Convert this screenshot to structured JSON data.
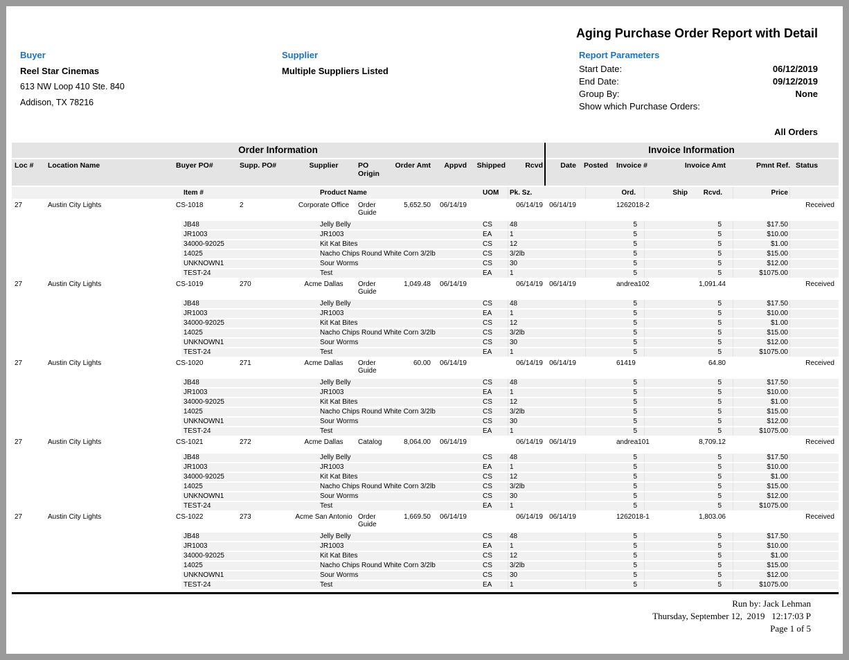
{
  "report": {
    "title": "Aging Purchase Order Report with Detail",
    "buyer": {
      "label": "Buyer",
      "name": "Reel Star Cinemas",
      "address1": "613 NW Loop 410 Ste. 840",
      "address2": "Addison, TX 78216"
    },
    "supplier": {
      "label": "Supplier",
      "value": "Multiple Suppliers Listed"
    },
    "parameters": {
      "label": "Report Parameters",
      "rows": [
        {
          "label": "Start Date:",
          "value": "06/12/2019"
        },
        {
          "label": "End Date:",
          "value": "09/12/2019"
        },
        {
          "label": "Group By:",
          "value": "None"
        },
        {
          "label": "Show which Purchase Orders:",
          "value": ""
        }
      ],
      "orders_filter": "All Orders"
    }
  },
  "table": {
    "groups": {
      "order": "Order Information",
      "invoice": "Invoice Information"
    },
    "order_columns": [
      "Loc #",
      "Location Name",
      "Buyer PO#",
      "Supp. PO#",
      "Supplier",
      "PO Origin",
      "Order Amt",
      "Appvd",
      "Shipped",
      "Rcvd",
      "Date",
      "Posted",
      "Invoice #",
      "Invoice Amt",
      "Pmnt Ref.",
      "Status"
    ],
    "item_columns": [
      "Item #",
      "Product Name",
      "UOM",
      "Pk. Sz.",
      "Ord.",
      "Ship",
      "Rcvd.",
      "Price"
    ],
    "orders": [
      {
        "loc": "27",
        "location_name": "Austin City Lights",
        "buyer_po": "CS-1018",
        "supp_po": "2",
        "supplier": "Corporate Office",
        "po_origin": "Order Guide",
        "order_amt": "5,652.50",
        "appvd": "06/14/19",
        "shipped": "",
        "rcvd": "06/14/19",
        "date": "06/14/19",
        "posted": "",
        "invoice_no": "1262018-2",
        "invoice_amt": "",
        "pmnt_ref": "",
        "status": "Received",
        "items": [
          {
            "item_no": "JB48",
            "product": "Jelly Belly",
            "uom": "CS",
            "pk_sz": "48",
            "ord": "5",
            "ship": "",
            "rcvd": "5",
            "price": "$17.50"
          },
          {
            "item_no": "JR1003",
            "product": "JR1003",
            "uom": "EA",
            "pk_sz": "1",
            "ord": "5",
            "ship": "",
            "rcvd": "5",
            "price": "$10.00"
          },
          {
            "item_no": "34000-92025",
            "product": "Kit Kat Bites",
            "uom": "CS",
            "pk_sz": "12",
            "ord": "5",
            "ship": "",
            "rcvd": "5",
            "price": "$1.00"
          },
          {
            "item_no": "14025",
            "product": "Nacho Chips Round White Corn 3/2lb",
            "uom": "CS",
            "pk_sz": "3/2lb",
            "ord": "5",
            "ship": "",
            "rcvd": "5",
            "price": "$15.00"
          },
          {
            "item_no": "UNKNOWN1",
            "product": "Sour Worms",
            "uom": "CS",
            "pk_sz": "30",
            "ord": "5",
            "ship": "",
            "rcvd": "5",
            "price": "$12.00"
          },
          {
            "item_no": "TEST-24",
            "product": "Test",
            "uom": "EA",
            "pk_sz": "1",
            "ord": "5",
            "ship": "",
            "rcvd": "5",
            "price": "$1075.00"
          }
        ]
      },
      {
        "loc": "27",
        "location_name": "Austin City Lights",
        "buyer_po": "CS-1019",
        "supp_po": "270",
        "supplier": "Acme Dallas",
        "po_origin": "Order Guide",
        "order_amt": "1,049.48",
        "appvd": "06/14/19",
        "shipped": "",
        "rcvd": "06/14/19",
        "date": "06/14/19",
        "posted": "",
        "invoice_no": "andrea102",
        "invoice_amt": "1,091.44",
        "pmnt_ref": "",
        "status": "Received",
        "items": [
          {
            "item_no": "JB48",
            "product": "Jelly Belly",
            "uom": "CS",
            "pk_sz": "48",
            "ord": "5",
            "ship": "",
            "rcvd": "5",
            "price": "$17.50"
          },
          {
            "item_no": "JR1003",
            "product": "JR1003",
            "uom": "EA",
            "pk_sz": "1",
            "ord": "5",
            "ship": "",
            "rcvd": "5",
            "price": "$10.00"
          },
          {
            "item_no": "34000-92025",
            "product": "Kit Kat Bites",
            "uom": "CS",
            "pk_sz": "12",
            "ord": "5",
            "ship": "",
            "rcvd": "5",
            "price": "$1.00"
          },
          {
            "item_no": "14025",
            "product": "Nacho Chips Round White Corn 3/2lb",
            "uom": "CS",
            "pk_sz": "3/2lb",
            "ord": "5",
            "ship": "",
            "rcvd": "5",
            "price": "$15.00"
          },
          {
            "item_no": "UNKNOWN1",
            "product": "Sour Worms",
            "uom": "CS",
            "pk_sz": "30",
            "ord": "5",
            "ship": "",
            "rcvd": "5",
            "price": "$12.00"
          },
          {
            "item_no": "TEST-24",
            "product": "Test",
            "uom": "EA",
            "pk_sz": "1",
            "ord": "5",
            "ship": "",
            "rcvd": "5",
            "price": "$1075.00"
          }
        ]
      },
      {
        "loc": "27",
        "location_name": "Austin City Lights",
        "buyer_po": "CS-1020",
        "supp_po": "271",
        "supplier": "Acme Dallas",
        "po_origin": "Order Guide",
        "order_amt": "60.00",
        "appvd": "06/14/19",
        "shipped": "",
        "rcvd": "06/14/19",
        "date": "06/14/19",
        "posted": "",
        "invoice_no": "61419",
        "invoice_amt": "64.80",
        "pmnt_ref": "",
        "status": "Received",
        "items": [
          {
            "item_no": "JB48",
            "product": "Jelly Belly",
            "uom": "CS",
            "pk_sz": "48",
            "ord": "5",
            "ship": "",
            "rcvd": "5",
            "price": "$17.50"
          },
          {
            "item_no": "JR1003",
            "product": "JR1003",
            "uom": "EA",
            "pk_sz": "1",
            "ord": "5",
            "ship": "",
            "rcvd": "5",
            "price": "$10.00"
          },
          {
            "item_no": "34000-92025",
            "product": "Kit Kat Bites",
            "uom": "CS",
            "pk_sz": "12",
            "ord": "5",
            "ship": "",
            "rcvd": "5",
            "price": "$1.00"
          },
          {
            "item_no": "14025",
            "product": "Nacho Chips Round White Corn 3/2lb",
            "uom": "CS",
            "pk_sz": "3/2lb",
            "ord": "5",
            "ship": "",
            "rcvd": "5",
            "price": "$15.00"
          },
          {
            "item_no": "UNKNOWN1",
            "product": "Sour Worms",
            "uom": "CS",
            "pk_sz": "30",
            "ord": "5",
            "ship": "",
            "rcvd": "5",
            "price": "$12.00"
          },
          {
            "item_no": "TEST-24",
            "product": "Test",
            "uom": "EA",
            "pk_sz": "1",
            "ord": "5",
            "ship": "",
            "rcvd": "5",
            "price": "$1075.00"
          }
        ]
      },
      {
        "loc": "27",
        "location_name": "Austin City Lights",
        "buyer_po": "CS-1021",
        "supp_po": "272",
        "supplier": "Acme Dallas",
        "po_origin": "Catalog",
        "order_amt": "8,064.00",
        "appvd": "06/14/19",
        "shipped": "",
        "rcvd": "06/14/19",
        "date": "06/14/19",
        "posted": "",
        "invoice_no": "andrea101",
        "invoice_amt": "8,709.12",
        "pmnt_ref": "",
        "status": "Received",
        "items": [
          {
            "item_no": "JB48",
            "product": "Jelly Belly",
            "uom": "CS",
            "pk_sz": "48",
            "ord": "5",
            "ship": "",
            "rcvd": "5",
            "price": "$17.50"
          },
          {
            "item_no": "JR1003",
            "product": "JR1003",
            "uom": "EA",
            "pk_sz": "1",
            "ord": "5",
            "ship": "",
            "rcvd": "5",
            "price": "$10.00"
          },
          {
            "item_no": "34000-92025",
            "product": "Kit Kat Bites",
            "uom": "CS",
            "pk_sz": "12",
            "ord": "5",
            "ship": "",
            "rcvd": "5",
            "price": "$1.00"
          },
          {
            "item_no": "14025",
            "product": "Nacho Chips Round White Corn 3/2lb",
            "uom": "CS",
            "pk_sz": "3/2lb",
            "ord": "5",
            "ship": "",
            "rcvd": "5",
            "price": "$15.00"
          },
          {
            "item_no": "UNKNOWN1",
            "product": "Sour Worms",
            "uom": "CS",
            "pk_sz": "30",
            "ord": "5",
            "ship": "",
            "rcvd": "5",
            "price": "$12.00"
          },
          {
            "item_no": "TEST-24",
            "product": "Test",
            "uom": "EA",
            "pk_sz": "1",
            "ord": "5",
            "ship": "",
            "rcvd": "5",
            "price": "$1075.00"
          }
        ]
      },
      {
        "loc": "27",
        "location_name": "Austin City Lights",
        "buyer_po": "CS-1022",
        "supp_po": "273",
        "supplier": "Acme San Antonio",
        "po_origin": "Order Guide",
        "order_amt": "1,669.50",
        "appvd": "06/14/19",
        "shipped": "",
        "rcvd": "06/14/19",
        "date": "06/14/19",
        "posted": "",
        "invoice_no": "1262018-1",
        "invoice_amt": "1,803.06",
        "pmnt_ref": "",
        "status": "Received",
        "items": [
          {
            "item_no": "JB48",
            "product": "Jelly Belly",
            "uom": "CS",
            "pk_sz": "48",
            "ord": "5",
            "ship": "",
            "rcvd": "5",
            "price": "$17.50"
          },
          {
            "item_no": "JR1003",
            "product": "JR1003",
            "uom": "EA",
            "pk_sz": "1",
            "ord": "5",
            "ship": "",
            "rcvd": "5",
            "price": "$10.00"
          },
          {
            "item_no": "34000-92025",
            "product": "Kit Kat Bites",
            "uom": "CS",
            "pk_sz": "12",
            "ord": "5",
            "ship": "",
            "rcvd": "5",
            "price": "$1.00"
          },
          {
            "item_no": "14025",
            "product": "Nacho Chips Round White Corn 3/2lb",
            "uom": "CS",
            "pk_sz": "3/2lb",
            "ord": "5",
            "ship": "",
            "rcvd": "5",
            "price": "$15.00"
          },
          {
            "item_no": "UNKNOWN1",
            "product": "Sour Worms",
            "uom": "CS",
            "pk_sz": "30",
            "ord": "5",
            "ship": "",
            "rcvd": "5",
            "price": "$12.00"
          },
          {
            "item_no": "TEST-24",
            "product": "Test",
            "uom": "EA",
            "pk_sz": "1",
            "ord": "5",
            "ship": "",
            "rcvd": "5",
            "price": "$1075.00"
          }
        ]
      }
    ]
  },
  "footer": {
    "run_by": "Run by: Jack Lehman",
    "datetime": "Thursday, September 12,  2019   12:17:03 P",
    "page": "Page 1 of 5"
  },
  "colors": {
    "accent_blue": "#1b74bc",
    "header_band": "#e4e4e4",
    "item_band": "#f1f1f1",
    "frame_gray": "#9a9a9a"
  }
}
